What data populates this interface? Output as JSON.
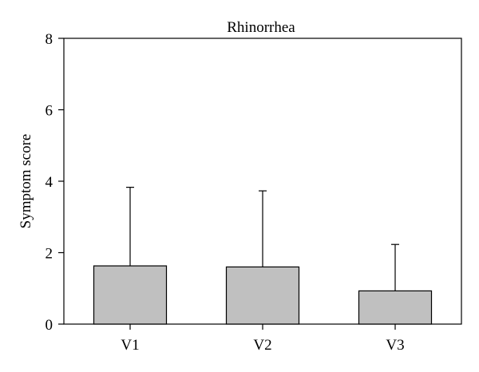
{
  "chart_data": {
    "type": "bar",
    "title": "Rhinorrhea",
    "xlabel": "",
    "ylabel": "Symptom score",
    "categories": [
      "V1",
      "V2",
      "V3"
    ],
    "values": [
      1.63,
      1.6,
      0.93
    ],
    "error_upper": [
      3.83,
      3.73,
      2.23
    ],
    "ylim": [
      0,
      8
    ],
    "yticks": [
      "0",
      "2",
      "4",
      "6",
      "8"
    ],
    "grid": false,
    "bar_color": "#c0c0c0",
    "edge_color": "#000000"
  }
}
